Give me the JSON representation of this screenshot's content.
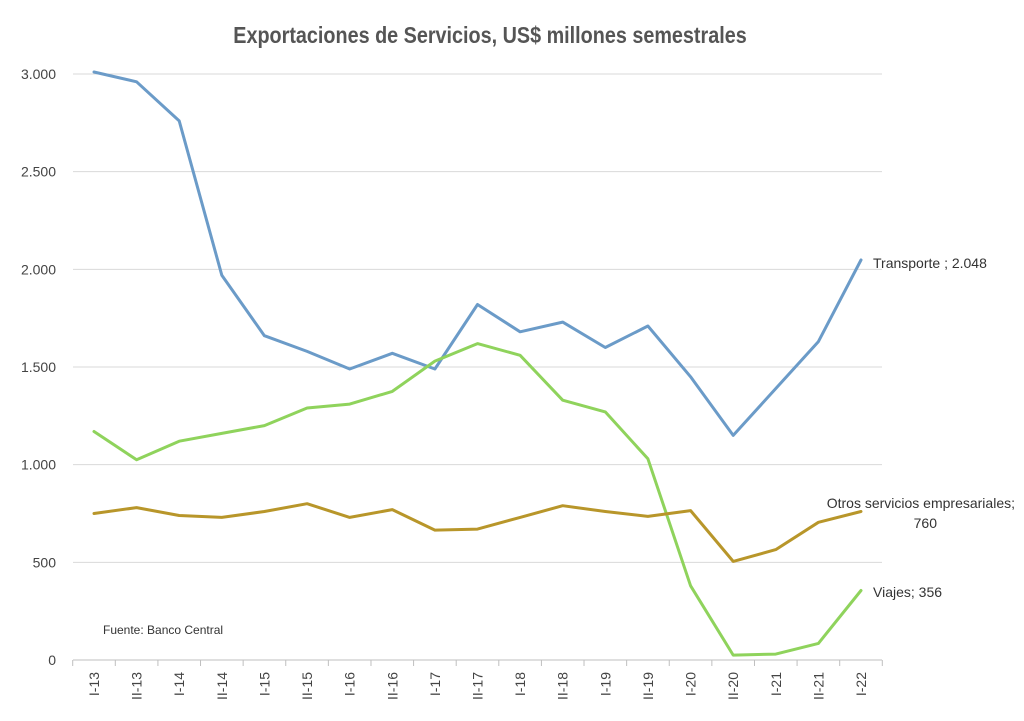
{
  "chart_data": {
    "type": "line",
    "title": "Exportaciones de Servicios, US$ millones semestrales",
    "source": "Fuente: Banco Central",
    "categories": [
      "I-13",
      "II-13",
      "I-14",
      "II-14",
      "I-15",
      "II-15",
      "I-16",
      "II-16",
      "I-17",
      "II-17",
      "I-18",
      "II-18",
      "I-19",
      "II-19",
      "I-20",
      "II-20",
      "I-21",
      "II-21",
      "I-22"
    ],
    "ylim": [
      0,
      3000
    ],
    "yticks": [
      0,
      500,
      1000,
      1500,
      2000,
      2500,
      3000
    ],
    "ytick_labels": [
      "0",
      "500",
      "1.000",
      "1.500",
      "2.000",
      "2.500",
      "3.000"
    ],
    "grid": true,
    "series": [
      {
        "name": "Transporte",
        "color": "#6b9bc8",
        "end_label": [
          "Transporte ; 2.048"
        ],
        "values": [
          3010,
          2960,
          2760,
          1970,
          1660,
          1580,
          1490,
          1570,
          1490,
          1820,
          1680,
          1730,
          1600,
          1710,
          1450,
          1150,
          1390,
          1630,
          2048
        ]
      },
      {
        "name": "Viajes",
        "color": "#8fd35c",
        "end_label": [
          "Viajes; 356"
        ],
        "values": [
          1170,
          1025,
          1120,
          1160,
          1200,
          1290,
          1310,
          1375,
          1530,
          1620,
          1560,
          1330,
          1270,
          1030,
          380,
          25,
          30,
          85,
          356
        ]
      },
      {
        "name": "Otros servicios empresariales",
        "color": "#b8962a",
        "end_label": [
          "Otros servicios empresariales;",
          "760"
        ],
        "values": [
          750,
          780,
          740,
          730,
          760,
          800,
          730,
          770,
          665,
          670,
          730,
          790,
          760,
          735,
          765,
          505,
          565,
          705,
          760
        ]
      }
    ]
  }
}
